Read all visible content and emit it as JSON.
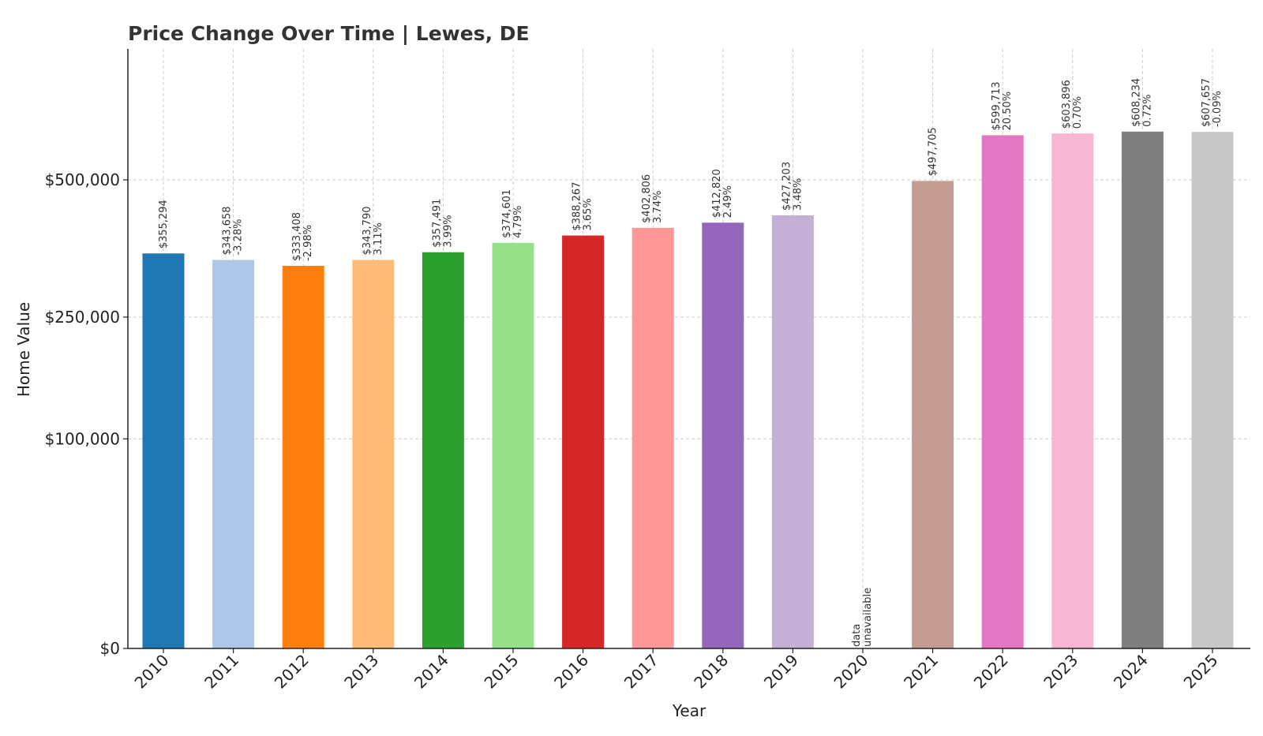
{
  "chart_data": {
    "type": "bar",
    "title": "Price Change Over Time | Lewes, DE",
    "xlabel": "Year",
    "ylabel": "Home Value",
    "y_scale": "sqrt",
    "ylim": [
      0,
      640000
    ],
    "yticks": [
      {
        "value": 0,
        "label": "$0"
      },
      {
        "value": 100000,
        "label": "$100,000"
      },
      {
        "value": 250000,
        "label": "$250,000"
      },
      {
        "value": 500000,
        "label": "$500,000"
      }
    ],
    "grid": true,
    "categories": [
      "2010",
      "2011",
      "2012",
      "2013",
      "2014",
      "2015",
      "2016",
      "2017",
      "2018",
      "2019",
      "2020",
      "2021",
      "2022",
      "2023",
      "2024",
      "2025"
    ],
    "values": [
      355294,
      343658,
      333408,
      343790,
      357491,
      374601,
      388267,
      402806,
      412820,
      427203,
      null,
      497705,
      599713,
      603896,
      608234,
      607657
    ],
    "value_labels": [
      "$355,294",
      "$343,658",
      "$333,408",
      "$343,790",
      "$357,491",
      "$374,601",
      "$388,267",
      "$402,806",
      "$412,820",
      "$427,203",
      "data",
      "$497,705",
      "$599,713",
      "$603,896",
      "$608,234",
      "$607,657"
    ],
    "change_labels": [
      "",
      "-3.28%",
      "-2.98%",
      "3.11%",
      "3.99%",
      "4.79%",
      "3.65%",
      "3.74%",
      "2.49%",
      "3.48%",
      "unavailable",
      "",
      "20.50%",
      "0.70%",
      "0.72%",
      "-0.09%"
    ],
    "colors": [
      "#1f77b4",
      "#aec7e8",
      "#ff7f0e",
      "#ffbb78",
      "#2ca02c",
      "#98df8a",
      "#d62728",
      "#ff9896",
      "#9467bd",
      "#c5b0d5",
      "#8c564b",
      "#c49c94",
      "#e377c2",
      "#f7b6d2",
      "#7f7f7f",
      "#c7c7c7"
    ]
  }
}
